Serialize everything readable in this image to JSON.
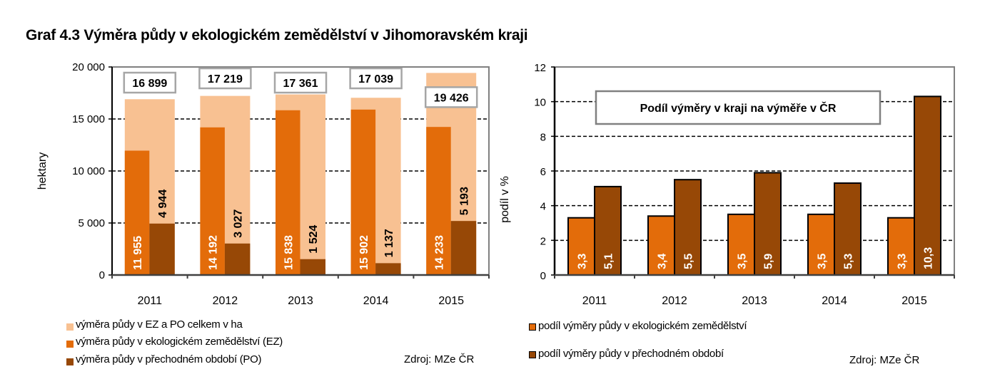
{
  "title": "Graf 4.3 Výměra půdy v ekologickém zemědělství v Jihomoravském kraji",
  "colors": {
    "total": "#F8C192",
    "ez": "#E36C0A",
    "po": "#974806",
    "grid": "#000000",
    "frame": "#808080"
  },
  "chart_data": [
    {
      "type": "bar",
      "title": "",
      "xlabel": "",
      "ylabel": "hektary",
      "ylim": [
        0,
        20000
      ],
      "yticks": [
        0,
        5000,
        10000,
        15000,
        20000
      ],
      "ytick_labels": [
        "0",
        "5 000",
        "10 000",
        "15 000",
        "20 000"
      ],
      "grid": true,
      "categories": [
        "2011",
        "2012",
        "2013",
        "2014",
        "2015"
      ],
      "series": [
        {
          "name": "výměra půdy v EZ a PO celkem v ha",
          "values": [
            16899,
            17219,
            17361,
            17039,
            19426
          ],
          "labels": [
            "16 899",
            "17 219",
            "17 361",
            "17 039",
            "19 426"
          ]
        },
        {
          "name": "výměra půdy v ekologickém zemědělství (EZ)",
          "values": [
            11955,
            14192,
            15838,
            15902,
            14233
          ],
          "labels": [
            "11 955",
            "14 192",
            "15 838",
            "15 902",
            "14 233"
          ]
        },
        {
          "name": "výměra půdy v přechodném období (PO)",
          "values": [
            4944,
            3027,
            1524,
            1137,
            5193
          ],
          "labels": [
            "4 944",
            "3 027",
            "1 524",
            "1 137",
            "5 193"
          ]
        }
      ],
      "legend_position": "bottom-left",
      "source": "Zdroj: MZe ČR"
    },
    {
      "type": "bar",
      "title": "",
      "annotation": "Podíl  výměry v kraji na  výměře v ČR",
      "xlabel": "",
      "ylabel": "podíl v %",
      "ylim": [
        0,
        12
      ],
      "yticks": [
        0,
        2,
        4,
        6,
        8,
        10,
        12
      ],
      "ytick_labels": [
        "0",
        "2",
        "4",
        "6",
        "8",
        "10",
        "12"
      ],
      "grid": true,
      "categories": [
        "2011",
        "2012",
        "2013",
        "2014",
        "2015"
      ],
      "series": [
        {
          "name": "podíl výměry půdy v ekologickém zemědělství",
          "values": [
            3.3,
            3.4,
            3.5,
            3.5,
            3.3
          ],
          "labels": [
            "3,3",
            "3,4",
            "3,5",
            "3,5",
            "3,3"
          ]
        },
        {
          "name": "podíl výměry půdy v přechodném období",
          "values": [
            5.1,
            5.5,
            5.9,
            5.3,
            10.3
          ],
          "labels": [
            "5,1",
            "5,5",
            "5,9",
            "5,3",
            "10,3"
          ]
        }
      ],
      "legend_position": "bottom-left",
      "source": "Zdroj: MZe ČR"
    }
  ]
}
